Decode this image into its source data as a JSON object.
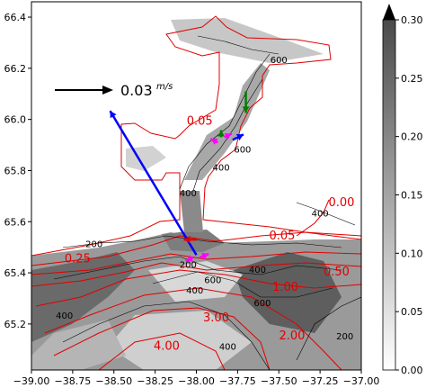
{
  "chart_data": {
    "type": "heatmap",
    "title": "",
    "xlabel": "",
    "ylabel": "",
    "xlim": [
      -39.0,
      -37.0
    ],
    "ylim": [
      65.02,
      66.46
    ],
    "xticks": [
      -39.0,
      -38.75,
      -38.5,
      -38.25,
      -38.0,
      -37.75,
      -37.5,
      -37.25,
      -37.0
    ],
    "xtick_labels": [
      "−39.00",
      "−38.75",
      "−38.50",
      "−38.25",
      "−38.00",
      "−37.75",
      "−37.50",
      "−37.25",
      "−37.00"
    ],
    "yticks": [
      65.2,
      65.4,
      65.6,
      65.8,
      66.0,
      66.2,
      66.4
    ],
    "ytick_labels": [
      "65.2",
      "65.4",
      "65.6",
      "65.8",
      "66.0",
      "66.2",
      "66.4"
    ],
    "colorbar": {
      "range": [
        0.0,
        0.3
      ],
      "ticks": [
        0.0,
        0.05,
        0.1,
        0.15,
        0.2,
        0.25,
        0.3
      ],
      "tick_labels": [
        "0.00",
        "0.05",
        "0.10",
        "0.15",
        "0.20",
        "0.25",
        "0.30"
      ],
      "colormap": "greys",
      "extend": "max"
    },
    "black_contours": {
      "color": "#000000",
      "labels": [
        {
          "text": "600",
          "x": -37.5,
          "y": 66.22
        },
        {
          "text": "600",
          "x": -37.72,
          "y": 65.87
        },
        {
          "text": "400",
          "x": -37.85,
          "y": 65.8
        },
        {
          "text": "400",
          "x": -38.05,
          "y": 65.7
        },
        {
          "text": "400",
          "x": -37.25,
          "y": 65.62
        },
        {
          "text": "200",
          "x": -38.62,
          "y": 65.5
        },
        {
          "text": "200",
          "x": -38.05,
          "y": 65.42
        },
        {
          "text": "400",
          "x": -38.01,
          "y": 65.32
        },
        {
          "text": "600",
          "x": -37.9,
          "y": 65.36
        },
        {
          "text": "400",
          "x": -37.63,
          "y": 65.4
        },
        {
          "text": "600",
          "x": -37.6,
          "y": 65.27
        },
        {
          "text": "400",
          "x": -38.8,
          "y": 65.22
        },
        {
          "text": "400",
          "x": -37.81,
          "y": 65.1
        },
        {
          "text": "200",
          "x": -37.1,
          "y": 65.14
        }
      ]
    },
    "red_contours": {
      "color": "#e00000",
      "labels": [
        {
          "text": "0.05",
          "x": -37.98,
          "y": 65.98
        },
        {
          "text": "0.00",
          "x": -37.12,
          "y": 65.66
        },
        {
          "text": "0.05",
          "x": -37.48,
          "y": 65.53
        },
        {
          "text": "0.25",
          "x": -38.72,
          "y": 65.44
        },
        {
          "text": "0.50",
          "x": -37.15,
          "y": 65.39
        },
        {
          "text": "1.00",
          "x": -37.46,
          "y": 65.33
        },
        {
          "text": "3.00",
          "x": -37.88,
          "y": 65.21
        },
        {
          "text": "2.00",
          "x": -37.42,
          "y": 65.14
        },
        {
          "text": "4.00",
          "x": -38.18,
          "y": 65.1
        }
      ]
    },
    "reference_arrow": {
      "label": "0.03",
      "units": "m/s",
      "value": 0.03
    },
    "vectors": [
      {
        "color": "#0000ff",
        "x": -38.0,
        "y": 65.47,
        "u": -0.048,
        "v": 0.08
      },
      {
        "color": "#0000ff",
        "x": -37.78,
        "y": 65.92,
        "u": 0.006,
        "v": 0.003
      },
      {
        "color": "#008000",
        "x": -37.7,
        "y": 66.11,
        "u": 0.0,
        "v": -0.012
      },
      {
        "color": "#008000",
        "x": -37.85,
        "y": 65.93,
        "u": 0.0,
        "v": 0.004
      },
      {
        "color": "#e00000",
        "x": -38.0,
        "y": 65.53,
        "u": -0.007,
        "v": 0.0
      },
      {
        "color": "#ff00ff",
        "x": -37.87,
        "y": 65.91,
        "u": -0.004,
        "v": 0.002
      },
      {
        "color": "#ff00ff",
        "x": -37.83,
        "y": 65.93,
        "u": 0.004,
        "v": 0.002
      },
      {
        "color": "#ff00ff",
        "x": -38.02,
        "y": 65.46,
        "u": -0.004,
        "v": -0.002
      },
      {
        "color": "#ff00ff",
        "x": -37.98,
        "y": 65.46,
        "u": 0.005,
        "v": 0.002
      }
    ]
  }
}
